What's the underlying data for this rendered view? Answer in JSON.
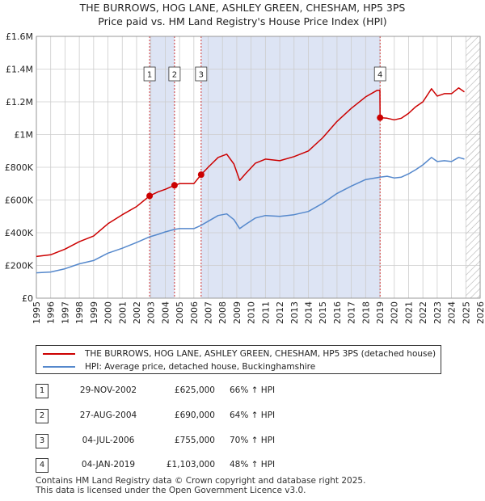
{
  "title_line1": "THE BURROWS, HOG LANE, ASHLEY GREEN, CHESHAM, HP5 3PS",
  "title_line2": "Price paid vs. HM Land Registry's House Price Index (HPI)",
  "colors": {
    "property": "#cc0000",
    "hpi": "#5588cc",
    "shade": "#dde4f4",
    "grid": "#cccccc",
    "marker_line": "#cc3333"
  },
  "legend": {
    "property": "THE BURROWS, HOG LANE, ASHLEY GREEN, CHESHAM, HP5 3PS (detached house)",
    "hpi": "HPI: Average price, detached house, Buckinghamshire"
  },
  "transactions": [
    {
      "num": "1",
      "date": "29-NOV-2002",
      "price": "£625,000",
      "hpi": "66% ↑ HPI"
    },
    {
      "num": "2",
      "date": "27-AUG-2004",
      "price": "£690,000",
      "hpi": "64% ↑ HPI"
    },
    {
      "num": "3",
      "date": "04-JUL-2006",
      "price": "£755,000",
      "hpi": "70% ↑ HPI"
    },
    {
      "num": "4",
      "date": "04-JAN-2019",
      "price": "£1,103,000",
      "hpi": "48% ↑ HPI"
    }
  ],
  "footer_line1": "Contains HM Land Registry data © Crown copyright and database right 2025.",
  "footer_line2": "This data is licensed under the Open Government Licence v3.0.",
  "chart_data": {
    "type": "line",
    "title": "Price paid vs. HM Land Registry's House Price Index (HPI)",
    "xlim": [
      1995,
      2026
    ],
    "ylim": [
      0,
      1600000
    ],
    "x_ticks": [
      1995,
      1996,
      1997,
      1998,
      1999,
      2000,
      2001,
      2002,
      2003,
      2004,
      2005,
      2006,
      2007,
      2008,
      2009,
      2010,
      2011,
      2012,
      2013,
      2014,
      2015,
      2016,
      2017,
      2018,
      2019,
      2020,
      2021,
      2022,
      2023,
      2024,
      2025,
      2026
    ],
    "y_ticks": [
      0,
      200000,
      400000,
      600000,
      800000,
      1000000,
      1200000,
      1400000,
      1600000
    ],
    "y_tick_labels": [
      "£0",
      "£200K",
      "£400K",
      "£600K",
      "£800K",
      "£1M",
      "£1.2M",
      "£1.4M",
      "£1.6M"
    ],
    "shaded_periods": [
      [
        2002.91,
        2004.65
      ],
      [
        2006.5,
        2019.01
      ]
    ],
    "hatched_from": 2025.0,
    "series": [
      {
        "name": "THE BURROWS, HOG LANE, ASHLEY GREEN, CHESHAM, HP5 3PS (detached house)",
        "x": [
          1995,
          1996,
          1997,
          1998,
          1999,
          2000,
          2001,
          2002,
          2002.91,
          2003.5,
          2004,
          2004.65,
          2005,
          2006,
          2006.51,
          2007,
          2007.7,
          2008.3,
          2008.8,
          2009.2,
          2009.6,
          2010.3,
          2011,
          2012,
          2013,
          2014,
          2015,
          2016,
          2017,
          2018,
          2018.8,
          2019.0,
          2019.01,
          2019.5,
          2020,
          2020.5,
          2021,
          2021.5,
          2022,
          2022.6,
          2023,
          2023.5,
          2024,
          2024.5,
          2024.9
        ],
        "y": [
          255000,
          265000,
          300000,
          345000,
          380000,
          455000,
          510000,
          560000,
          625000,
          650000,
          665000,
          690000,
          700000,
          700000,
          755000,
          800000,
          860000,
          880000,
          820000,
          720000,
          760000,
          825000,
          850000,
          840000,
          865000,
          900000,
          980000,
          1080000,
          1160000,
          1230000,
          1270000,
          1270000,
          1103000,
          1100000,
          1090000,
          1100000,
          1130000,
          1170000,
          1200000,
          1280000,
          1235000,
          1250000,
          1250000,
          1285000,
          1260000
        ]
      },
      {
        "name": "HPI: Average price, detached house, Buckinghamshire",
        "x": [
          1995,
          1996,
          1997,
          1998,
          1999,
          2000,
          2001,
          2002,
          2002.91,
          2003.5,
          2004,
          2004.65,
          2005,
          2006,
          2006.51,
          2007,
          2007.7,
          2008.3,
          2008.8,
          2009.2,
          2009.6,
          2010.3,
          2011,
          2012,
          2013,
          2014,
          2015,
          2016,
          2017,
          2018,
          2019.0,
          2019.5,
          2020,
          2020.5,
          2021,
          2021.5,
          2022,
          2022.6,
          2023,
          2023.5,
          2024,
          2024.5,
          2024.9
        ],
        "y": [
          155000,
          160000,
          180000,
          210000,
          230000,
          275000,
          305000,
          340000,
          375000,
          390000,
          405000,
          420000,
          425000,
          425000,
          445000,
          470000,
          505000,
          515000,
          480000,
          425000,
          450000,
          490000,
          505000,
          500000,
          510000,
          530000,
          580000,
          640000,
          685000,
          725000,
          740000,
          745000,
          735000,
          740000,
          760000,
          785000,
          815000,
          860000,
          835000,
          840000,
          835000,
          860000,
          850000
        ]
      }
    ],
    "sale_markers": [
      {
        "label": "1",
        "x": 2002.91,
        "y": 625000
      },
      {
        "label": "2",
        "x": 2004.65,
        "y": 690000
      },
      {
        "label": "3",
        "x": 2006.51,
        "y": 755000
      },
      {
        "label": "4",
        "x": 2019.01,
        "y": 1103000
      }
    ]
  }
}
